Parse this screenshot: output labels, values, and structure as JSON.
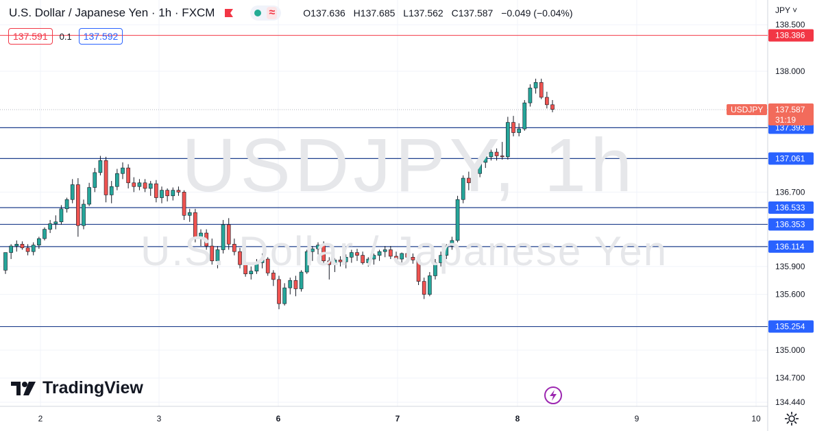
{
  "header": {
    "symbol_title": "U.S. Dollar / Japanese Yen · 1h · FXCM",
    "open_label": "O",
    "open": "137.636",
    "high_label": "H",
    "high": "137.685",
    "low_label": "L",
    "low": "137.562",
    "close_label": "C",
    "close": "137.587",
    "change": "−0.049 (−0.04%)",
    "bid": "137.591",
    "spread": "0.1",
    "ask": "137.592"
  },
  "currency_menu": "JPY ˅",
  "watermark": {
    "symbol": "USDJPY, 1h",
    "name": "U.S. Dollar / Japanese Yen"
  },
  "logo": {
    "text": "TradingView"
  },
  "colors": {
    "up": "#26a69a",
    "down": "#ef5350",
    "level_line": "#1e3f8c",
    "level_label_bg": "#2962ff",
    "red_line": "#f23645",
    "price_label_bg": "#f26b5b"
  },
  "chart_data": {
    "type": "candlestick",
    "y_axis": {
      "ticks": [
        {
          "label": "138.500",
          "value": 138.5
        },
        {
          "label": "138.000",
          "value": 138.0
        },
        {
          "label": "136.700",
          "value": 136.7
        },
        {
          "label": "135.900",
          "value": 135.9
        },
        {
          "label": "135.600",
          "value": 135.6
        },
        {
          "label": "135.000",
          "value": 135.0
        },
        {
          "label": "134.700",
          "value": 134.7
        },
        {
          "label": "134.440",
          "value": 134.44
        }
      ]
    },
    "x_axis": {
      "ticks": [
        "2",
        "3",
        "6",
        "7",
        "8",
        "9",
        "10"
      ]
    },
    "horizontal_levels": [
      {
        "value": 137.393,
        "label": "137.393"
      },
      {
        "value": 137.061,
        "label": "137.061"
      },
      {
        "value": 136.533,
        "label": "136.533"
      },
      {
        "value": 136.353,
        "label": "136.353"
      },
      {
        "value": 136.114,
        "label": "136.114"
      },
      {
        "value": 135.254,
        "label": "135.254"
      }
    ],
    "red_level": {
      "value": 138.386,
      "label": "138.386"
    },
    "last_price": {
      "value": 137.587,
      "label": "137.587",
      "symbol": "USDJPY",
      "countdown": "31:19"
    },
    "candles": [
      [
        135.86,
        136.05,
        135.82,
        136.05
      ],
      [
        136.05,
        136.14,
        135.98,
        136.12
      ],
      [
        136.12,
        136.18,
        136.06,
        136.14
      ],
      [
        136.14,
        136.17,
        136.08,
        136.1
      ],
      [
        136.1,
        136.14,
        136.02,
        136.06
      ],
      [
        136.06,
        136.16,
        136.02,
        136.13
      ],
      [
        136.13,
        136.22,
        136.09,
        136.2
      ],
      [
        136.2,
        136.32,
        136.18,
        136.3
      ],
      [
        136.3,
        136.4,
        136.26,
        136.36
      ],
      [
        136.36,
        136.45,
        136.3,
        136.38
      ],
      [
        136.38,
        136.56,
        136.35,
        136.52
      ],
      [
        136.52,
        136.64,
        136.48,
        136.62
      ],
      [
        136.62,
        136.84,
        136.58,
        136.78
      ],
      [
        136.78,
        136.85,
        136.22,
        136.34
      ],
      [
        136.34,
        136.62,
        136.3,
        136.57
      ],
      [
        136.57,
        136.8,
        136.55,
        136.75
      ],
      [
        136.75,
        136.96,
        136.7,
        136.91
      ],
      [
        136.91,
        137.09,
        136.88,
        137.04
      ],
      [
        137.04,
        137.08,
        136.59,
        136.67
      ],
      [
        136.67,
        136.82,
        136.58,
        136.76
      ],
      [
        136.76,
        136.95,
        136.72,
        136.9
      ],
      [
        136.9,
        137.02,
        136.84,
        136.96
      ],
      [
        136.96,
        137.0,
        136.74,
        136.8
      ],
      [
        136.8,
        136.86,
        136.7,
        136.76
      ],
      [
        136.76,
        136.84,
        136.72,
        136.8
      ],
      [
        136.8,
        136.84,
        136.7,
        136.74
      ],
      [
        136.74,
        136.82,
        136.66,
        136.79
      ],
      [
        136.79,
        136.83,
        136.59,
        136.64
      ],
      [
        136.64,
        136.76,
        136.58,
        136.72
      ],
      [
        136.72,
        136.74,
        136.6,
        136.66
      ],
      [
        136.66,
        136.75,
        136.61,
        136.72
      ],
      [
        136.72,
        136.76,
        136.66,
        136.7
      ],
      [
        136.7,
        136.72,
        136.4,
        136.45
      ],
      [
        136.45,
        136.52,
        136.38,
        136.48
      ],
      [
        136.48,
        136.52,
        136.16,
        136.21
      ],
      [
        136.21,
        136.3,
        136.12,
        136.26
      ],
      [
        136.26,
        136.3,
        136.08,
        136.12
      ],
      [
        136.12,
        136.2,
        135.92,
        135.96
      ],
      [
        135.96,
        136.12,
        135.88,
        136.08
      ],
      [
        136.08,
        136.4,
        136.04,
        136.35
      ],
      [
        136.35,
        136.42,
        136.08,
        136.14
      ],
      [
        136.14,
        136.2,
        136.02,
        136.06
      ],
      [
        136.06,
        136.1,
        135.88,
        135.92
      ],
      [
        135.92,
        135.96,
        135.79,
        135.82
      ],
      [
        135.82,
        135.9,
        135.76,
        135.85
      ],
      [
        135.85,
        135.98,
        135.82,
        135.94
      ],
      [
        135.94,
        136.04,
        135.88,
        135.98
      ],
      [
        135.98,
        136.0,
        135.8,
        135.83
      ],
      [
        135.83,
        135.86,
        135.69,
        135.76
      ],
      [
        135.76,
        135.8,
        135.44,
        135.5
      ],
      [
        135.5,
        135.72,
        135.48,
        135.67
      ],
      [
        135.67,
        135.78,
        135.6,
        135.75
      ],
      [
        135.75,
        135.8,
        135.58,
        135.66
      ],
      [
        135.66,
        135.86,
        135.63,
        135.84
      ],
      [
        135.84,
        136.08,
        135.82,
        136.06
      ],
      [
        136.06,
        136.12,
        135.96,
        136.09
      ],
      [
        136.09,
        136.16,
        136.03,
        136.13
      ],
      [
        136.13,
        136.17,
        135.92,
        135.96
      ],
      [
        135.96,
        136.0,
        135.76,
        135.92
      ],
      [
        135.92,
        135.99,
        135.84,
        135.97
      ],
      [
        135.97,
        136.01,
        135.9,
        135.95
      ],
      [
        135.95,
        136.03,
        135.88,
        136.0
      ],
      [
        136.0,
        136.08,
        135.94,
        136.05
      ],
      [
        136.05,
        136.09,
        135.96,
        136.02
      ],
      [
        136.02,
        136.06,
        135.92,
        135.94
      ],
      [
        135.94,
        136.0,
        135.9,
        135.98
      ],
      [
        135.98,
        136.04,
        135.92,
        136.02
      ],
      [
        136.02,
        136.08,
        135.96,
        136.06
      ],
      [
        136.06,
        136.12,
        136.0,
        136.08
      ],
      [
        136.08,
        136.12,
        135.98,
        136.01
      ],
      [
        136.01,
        136.06,
        135.94,
        135.98
      ],
      [
        135.98,
        136.05,
        135.94,
        136.04
      ],
      [
        136.04,
        136.08,
        135.98,
        136.0
      ],
      [
        136.0,
        136.04,
        135.93,
        135.97
      ],
      [
        135.97,
        136.0,
        135.7,
        135.74
      ],
      [
        135.74,
        135.78,
        135.55,
        135.6
      ],
      [
        135.6,
        135.84,
        135.58,
        135.8
      ],
      [
        135.8,
        135.98,
        135.76,
        135.94
      ],
      [
        135.94,
        136.06,
        135.9,
        136.02
      ],
      [
        136.02,
        136.14,
        135.98,
        136.12
      ],
      [
        136.12,
        136.22,
        136.08,
        136.18
      ],
      [
        136.18,
        136.66,
        136.16,
        136.62
      ],
      [
        136.62,
        136.88,
        136.58,
        136.85
      ],
      [
        136.85,
        136.92,
        136.72,
        136.8
      ],
      [
        136.8,
        136.94,
        136.76,
        136.9
      ],
      [
        136.9,
        137.06,
        136.86,
        137.02
      ],
      [
        137.02,
        137.1,
        136.96,
        137.08
      ],
      [
        137.08,
        137.16,
        137.04,
        137.13
      ],
      [
        137.13,
        137.17,
        137.04,
        137.09
      ],
      [
        137.09,
        137.24,
        137.05,
        137.08
      ],
      [
        137.08,
        137.51,
        137.05,
        137.45
      ],
      [
        137.45,
        137.52,
        137.3,
        137.34
      ],
      [
        137.34,
        137.44,
        137.3,
        137.38
      ],
      [
        137.38,
        137.69,
        137.36,
        137.66
      ],
      [
        137.66,
        137.86,
        137.62,
        137.82
      ],
      [
        137.82,
        137.92,
        137.76,
        137.88
      ],
      [
        137.88,
        137.92,
        137.7,
        137.72
      ],
      [
        137.72,
        137.78,
        137.6,
        137.64
      ],
      [
        137.64,
        137.69,
        137.56,
        137.59
      ]
    ]
  }
}
